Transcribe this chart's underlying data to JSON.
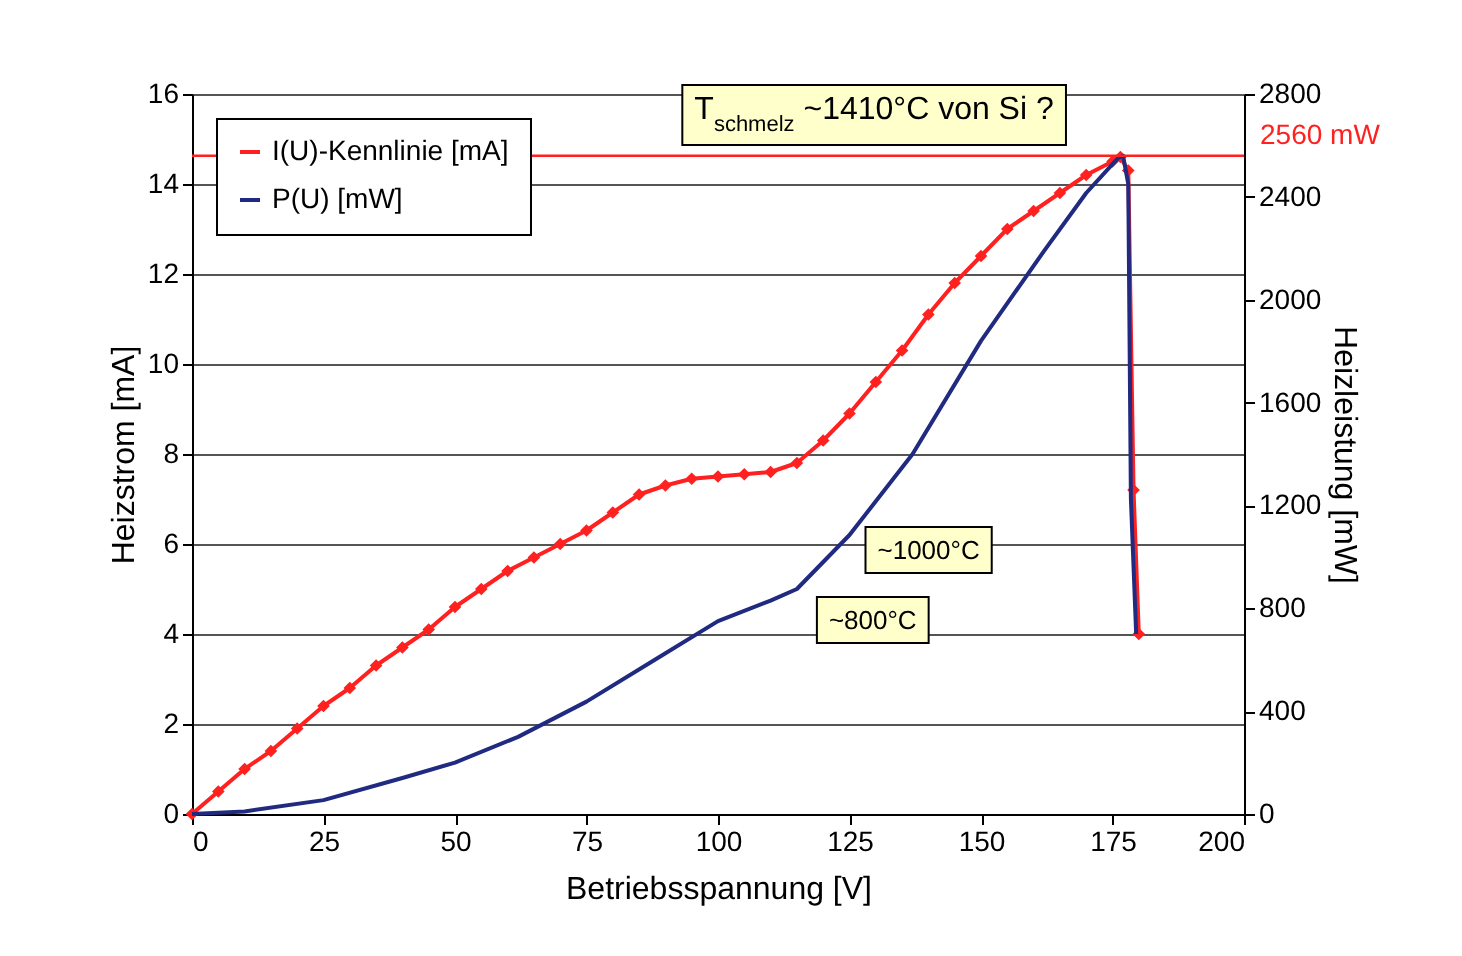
{
  "chart_data": {
    "type": "line",
    "xlabel": "Betriebsspannung [V]",
    "ylabel": "Heizstrom [mA]",
    "y2label": "Heizleistung [mW]",
    "x": [
      0,
      5,
      10,
      15,
      20,
      25,
      30,
      35,
      40,
      45,
      50,
      55,
      60,
      65,
      70,
      75,
      80,
      85,
      90,
      95,
      100,
      105,
      110,
      115,
      120,
      125,
      130,
      135,
      140,
      145,
      150,
      155,
      160,
      165,
      170,
      175,
      176.5,
      178,
      179,
      180
    ],
    "series": [
      {
        "name": "I(U)-Kennlinie [mA]",
        "color": "#ff2020",
        "marker": "diamond",
        "values": [
          0,
          0.5,
          1.0,
          1.4,
          1.9,
          2.4,
          2.8,
          3.3,
          3.7,
          4.1,
          4.6,
          5.0,
          5.4,
          5.7,
          6.0,
          6.3,
          6.7,
          7.1,
          7.3,
          7.45,
          7.5,
          7.55,
          7.6,
          7.8,
          8.3,
          8.9,
          9.6,
          10.3,
          11.1,
          11.8,
          12.4,
          13.0,
          13.4,
          13.8,
          14.2,
          14.5,
          14.6,
          14.3,
          7.2,
          4.0
        ]
      },
      {
        "name": "P(U) [mW]",
        "color": "#1f2a80",
        "axis": "y2",
        "x": [
          0,
          10,
          25,
          40,
          50,
          62,
          75,
          88,
          100,
          110,
          115,
          125,
          137,
          150,
          162,
          170,
          176,
          177,
          178,
          178.5,
          179.5
        ],
        "values": [
          0,
          10,
          54,
          140,
          200,
          300,
          437,
          600,
          750,
          830,
          875,
          1085,
          1400,
          1840,
          2190,
          2415,
          2550,
          2560,
          2450,
          1225,
          700
        ]
      }
    ],
    "xlim": [
      0,
      200
    ],
    "xticks": [
      0,
      25,
      50,
      75,
      100,
      125,
      150,
      175,
      200
    ],
    "ylim": [
      0,
      16
    ],
    "yticks": [
      0,
      2,
      4,
      6,
      8,
      10,
      12,
      14,
      16
    ],
    "y2lim": [
      0,
      2800
    ],
    "y2ticks": [
      0,
      400,
      800,
      1200,
      1600,
      2000,
      2400,
      2800
    ],
    "grid": "y",
    "legend": "top left",
    "ref_lines": [
      {
        "axis": "y2",
        "value": 2560,
        "label": "2560 mW",
        "color": "#ff2020"
      }
    ],
    "annotations": [
      {
        "text": "T$_{schmelz}$ ~1410°C von Si ?",
        "x": 176,
        "y": 14.6
      },
      {
        "text": "~1000°C",
        "x": 125,
        "y": 6.2
      },
      {
        "text": "~800°C",
        "x": 115,
        "y": 5.0
      }
    ]
  }
}
